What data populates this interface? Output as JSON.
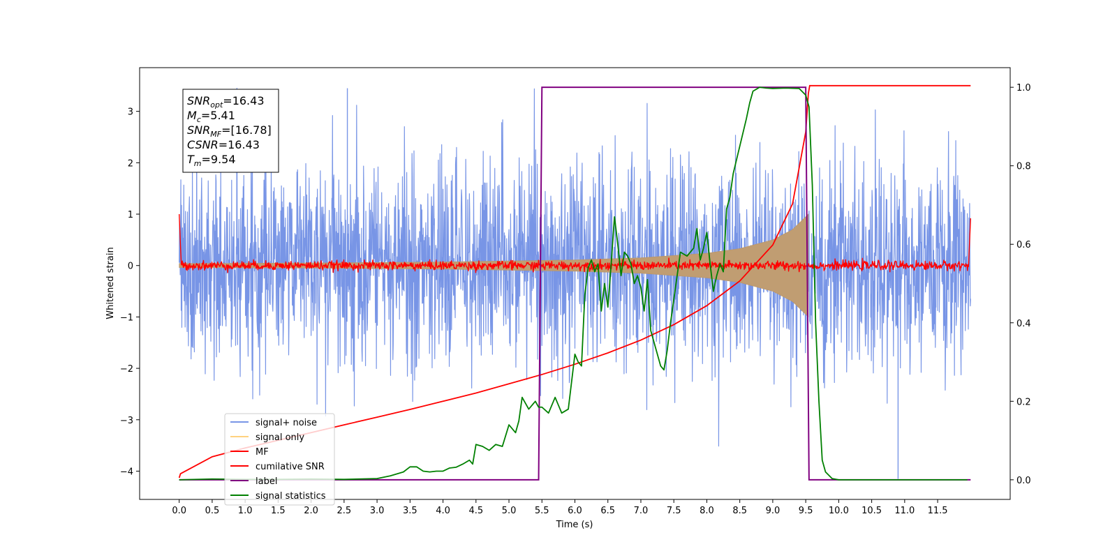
{
  "chart_data": {
    "type": "line",
    "xlabel": "Time (s)",
    "ylabel": "Whitened strain",
    "xlim": [
      -0.6,
      12.6
    ],
    "ylim": [
      -4.55,
      3.85
    ],
    "y2lim": [
      -0.05,
      1.05
    ],
    "x_ticks": [
      "0.0",
      "0.5",
      "1.0",
      "1.5",
      "2.0",
      "2.5",
      "3.0",
      "3.5",
      "4.0",
      "4.5",
      "5.0",
      "5.5",
      "6.0",
      "6.5",
      "7.0",
      "7.5",
      "8.0",
      "8.5",
      "9.0",
      "9.5",
      "10.0",
      "10.5",
      "11.0",
      "11.5"
    ],
    "y_ticks": [
      "3",
      "2",
      "1",
      "0",
      "−1",
      "−2",
      "−3",
      "−4"
    ],
    "y2_ticks": [
      "1.0",
      "0.8",
      "0.6",
      "0.4",
      "0.2",
      "0.0"
    ],
    "annotation_lines": [
      {
        "base": "SNR",
        "sub": "opt",
        "value": "=16.43"
      },
      {
        "base": "M",
        "sub": "c",
        "value": "=5.41"
      },
      {
        "base": "SNR",
        "sub": "MF",
        "value": "=[16.78]"
      },
      {
        "base": "CSNR",
        "sub": "",
        "value": "=16.43"
      },
      {
        "base": "T",
        "sub": "m",
        "value": "=9.54"
      }
    ],
    "legend": {
      "position": "lower-left",
      "entries": [
        {
          "label": "signal+ noise",
          "color": "#7895E6"
        },
        {
          "label": "signal only",
          "color": "#FFD27F"
        },
        {
          "label": "MF",
          "color": "#FF0000"
        },
        {
          "label": "cumilative SNR",
          "color": "#FF0000"
        },
        {
          "label": "label",
          "color": "#800080"
        },
        {
          "label": "signal statistics",
          "color": "#008000"
        }
      ]
    },
    "series": [
      {
        "name": "signal+ noise",
        "axis": "left",
        "style": "noise band",
        "x_range": [
          0,
          12
        ],
        "amplitude_std": 1.0,
        "max": 3.45,
        "min": -4.15
      },
      {
        "name": "signal only",
        "axis": "left",
        "style": "chirp envelope",
        "x_range": [
          0,
          9.54
        ],
        "envelope_x": [
          0,
          2,
          4,
          6,
          7,
          8,
          8.5,
          9,
          9.3,
          9.54
        ],
        "envelope_y": [
          0.04,
          0.05,
          0.07,
          0.11,
          0.15,
          0.24,
          0.33,
          0.5,
          0.7,
          1.0
        ]
      },
      {
        "name": "MF",
        "axis": "left",
        "style": "noisy line",
        "x_range": [
          0,
          12
        ],
        "mean": 0.0,
        "amplitude": 0.08,
        "end_values": [
          1.0,
          0.92
        ]
      },
      {
        "name": "cumilative SNR",
        "axis": "left",
        "style": "line",
        "x": [
          0,
          0.02,
          0.5,
          1,
          1.5,
          2,
          2.5,
          3,
          3.5,
          4,
          4.5,
          5,
          5.5,
          6,
          6.5,
          7,
          7.5,
          8,
          8.5,
          9,
          9.3,
          9.5,
          9.54,
          9.56,
          12
        ],
        "y": [
          -4.13,
          -4.05,
          -3.72,
          -3.55,
          -3.4,
          -3.25,
          -3.1,
          -2.95,
          -2.8,
          -2.64,
          -2.48,
          -2.3,
          -2.12,
          -1.92,
          -1.7,
          -1.45,
          -1.15,
          -0.78,
          -0.3,
          0.4,
          1.2,
          2.6,
          3.35,
          3.5,
          3.5
        ]
      },
      {
        "name": "label",
        "axis": "right",
        "style": "step",
        "x": [
          0,
          5.45,
          5.5,
          9.5,
          9.55,
          12
        ],
        "y": [
          0,
          0,
          1,
          1,
          0,
          0
        ]
      },
      {
        "name": "signal statistics",
        "axis": "right",
        "style": "line",
        "x": [
          0,
          0.5,
          1,
          1.5,
          2,
          2.5,
          3,
          3.2,
          3.4,
          3.5,
          3.6,
          3.7,
          3.8,
          3.9,
          4.0,
          4.1,
          4.2,
          4.3,
          4.4,
          4.45,
          4.5,
          4.6,
          4.7,
          4.8,
          4.9,
          5.0,
          5.05,
          5.1,
          5.15,
          5.2,
          5.3,
          5.4,
          5.45,
          5.5,
          5.6,
          5.7,
          5.8,
          5.9,
          6.0,
          6.05,
          6.1,
          6.15,
          6.2,
          6.25,
          6.3,
          6.35,
          6.4,
          6.45,
          6.5,
          6.55,
          6.6,
          6.65,
          6.7,
          6.75,
          6.8,
          6.85,
          6.9,
          6.95,
          7.0,
          7.05,
          7.1,
          7.15,
          7.2,
          7.25,
          7.3,
          7.35,
          7.4,
          7.45,
          7.5,
          7.55,
          7.6,
          7.7,
          7.8,
          7.85,
          7.9,
          7.95,
          8.0,
          8.05,
          8.1,
          8.15,
          8.2,
          8.25,
          8.3,
          8.35,
          8.4,
          8.5,
          8.6,
          8.65,
          8.7,
          8.8,
          8.9,
          9.0,
          9.2,
          9.4,
          9.5,
          9.55,
          9.6,
          9.65,
          9.7,
          9.75,
          9.8,
          9.9,
          10.0,
          11.0,
          11.95
        ],
        "y": [
          0.0,
          0.002,
          0.001,
          0.001,
          0.002,
          0.001,
          0.003,
          0.01,
          0.02,
          0.033,
          0.033,
          0.022,
          0.02,
          0.022,
          0.022,
          0.03,
          0.032,
          0.04,
          0.05,
          0.04,
          0.09,
          0.085,
          0.075,
          0.09,
          0.085,
          0.14,
          0.13,
          0.12,
          0.15,
          0.21,
          0.18,
          0.2,
          0.185,
          0.185,
          0.17,
          0.21,
          0.17,
          0.18,
          0.32,
          0.3,
          0.29,
          0.47,
          0.54,
          0.56,
          0.53,
          0.55,
          0.43,
          0.5,
          0.44,
          0.55,
          0.67,
          0.6,
          0.52,
          0.58,
          0.57,
          0.55,
          0.5,
          0.52,
          0.49,
          0.43,
          0.51,
          0.38,
          0.35,
          0.32,
          0.29,
          0.28,
          0.33,
          0.4,
          0.46,
          0.52,
          0.58,
          0.57,
          0.59,
          0.64,
          0.56,
          0.59,
          0.63,
          0.55,
          0.48,
          0.52,
          0.55,
          0.53,
          0.69,
          0.72,
          0.78,
          0.85,
          0.92,
          0.96,
          0.99,
          1.0,
          0.998,
          0.997,
          0.998,
          0.997,
          0.98,
          0.95,
          0.75,
          0.4,
          0.2,
          0.05,
          0.02,
          0.003,
          0.0,
          0.0,
          0.0
        ]
      }
    ]
  }
}
